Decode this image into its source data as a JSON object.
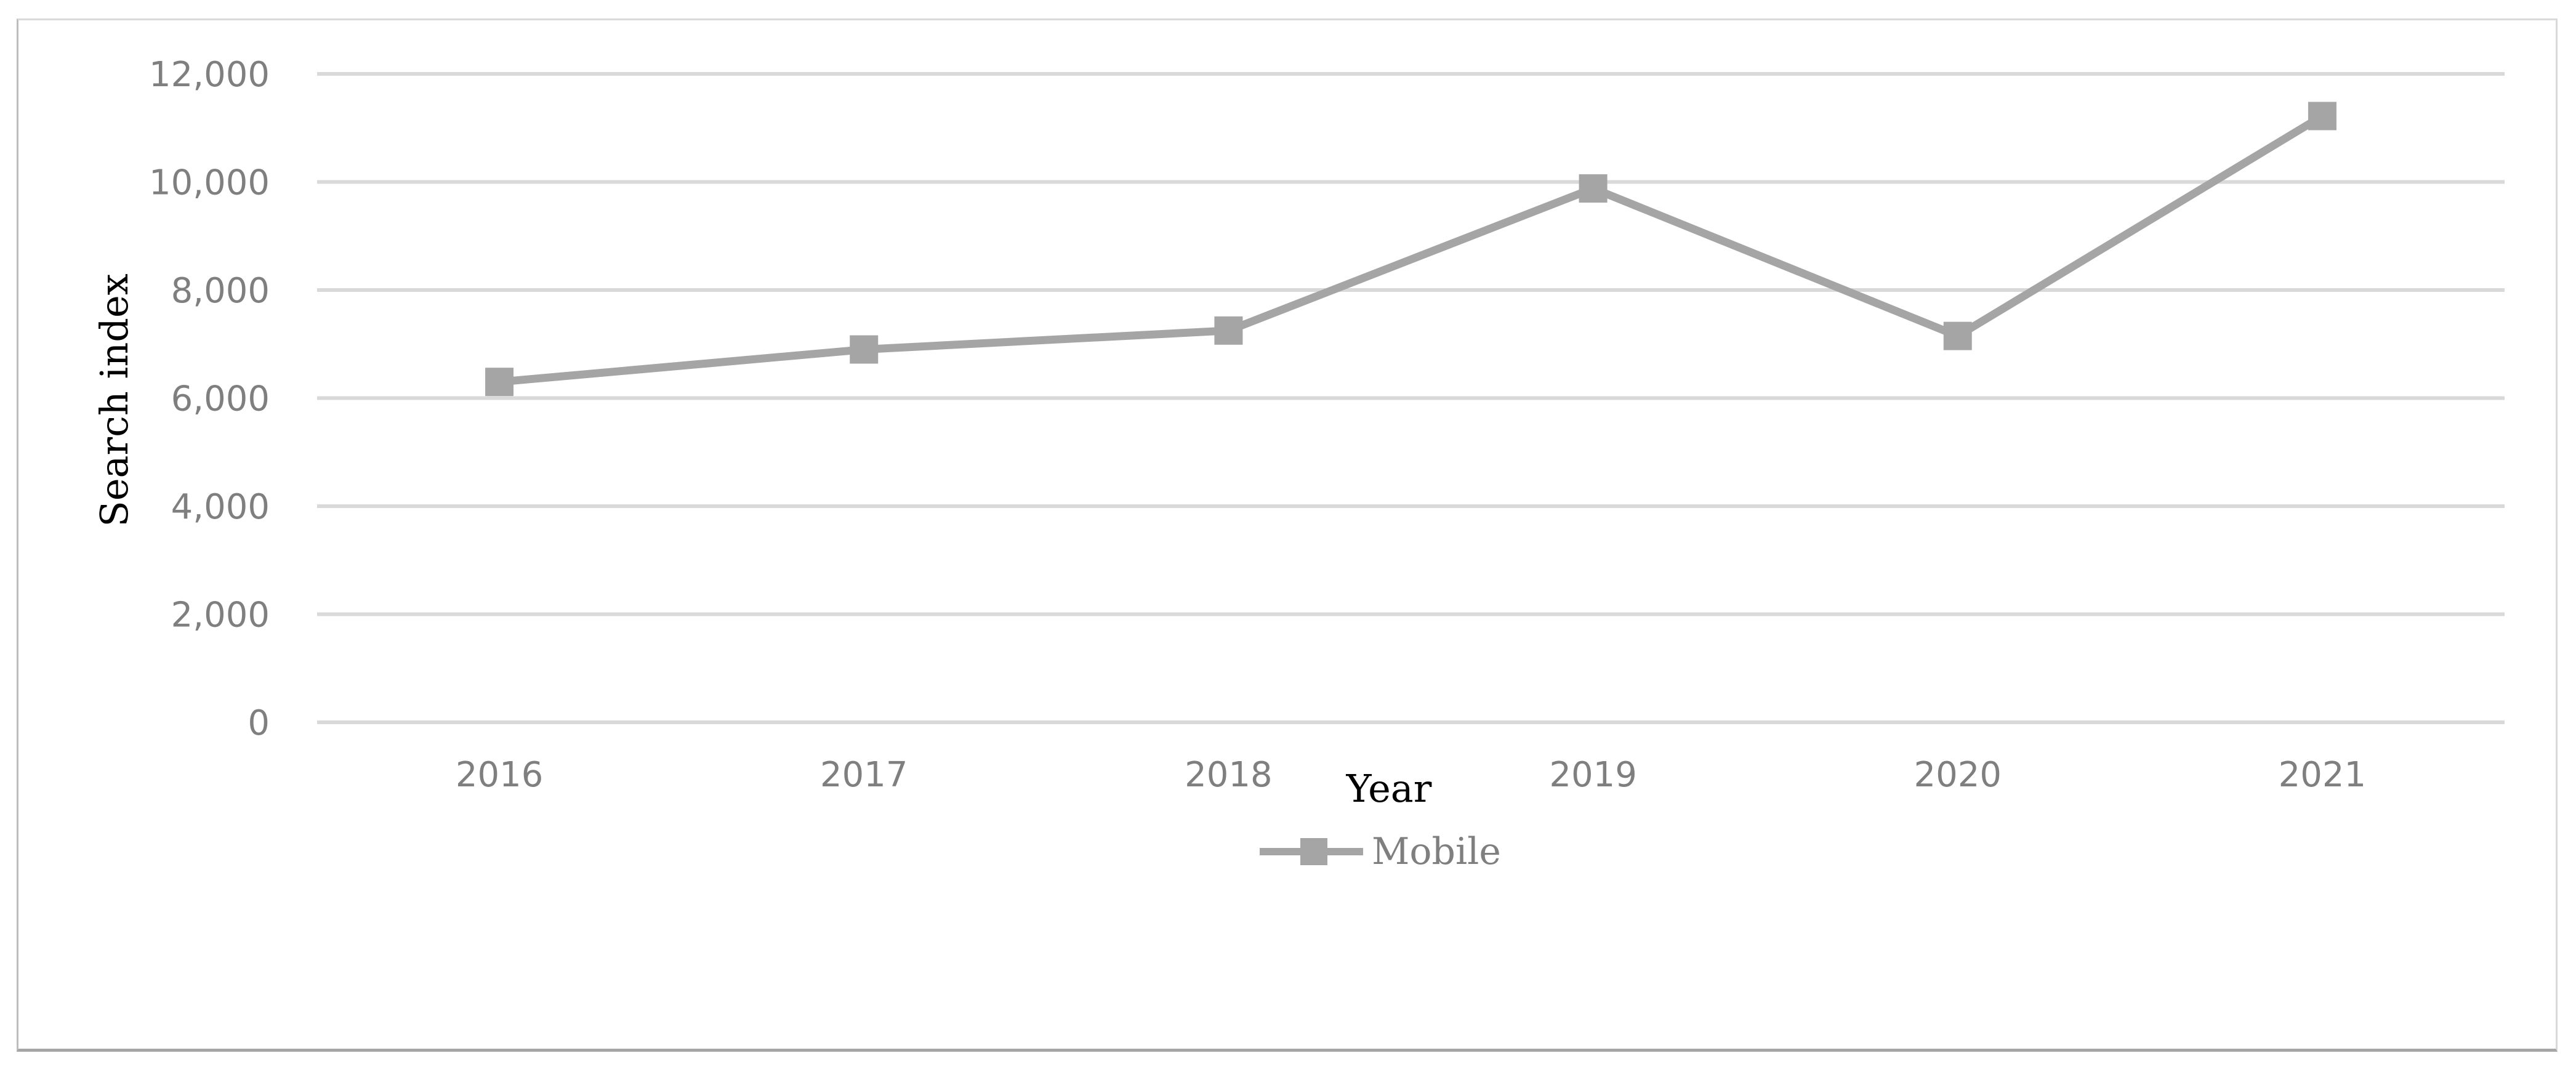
{
  "chart_data": {
    "type": "line",
    "title": "",
    "xlabel": "Year",
    "ylabel": "Search index",
    "categories": [
      "2016",
      "2017",
      "2018",
      "2019",
      "2020",
      "2021"
    ],
    "series": [
      {
        "name": "Mobile",
        "values": [
          6300,
          6900,
          7250,
          9880,
          7150,
          11220
        ],
        "color": "#a5a5a5",
        "marker": "square"
      }
    ],
    "ylim": [
      0,
      12000
    ],
    "yticks": [
      0,
      2000,
      4000,
      6000,
      8000,
      10000,
      12000
    ],
    "ytick_labels": [
      "0",
      "2,000",
      "4,000",
      "6,000",
      "8,000",
      "10,000",
      "12,000"
    ],
    "grid": "horizontal",
    "legend": "bottom-center"
  }
}
